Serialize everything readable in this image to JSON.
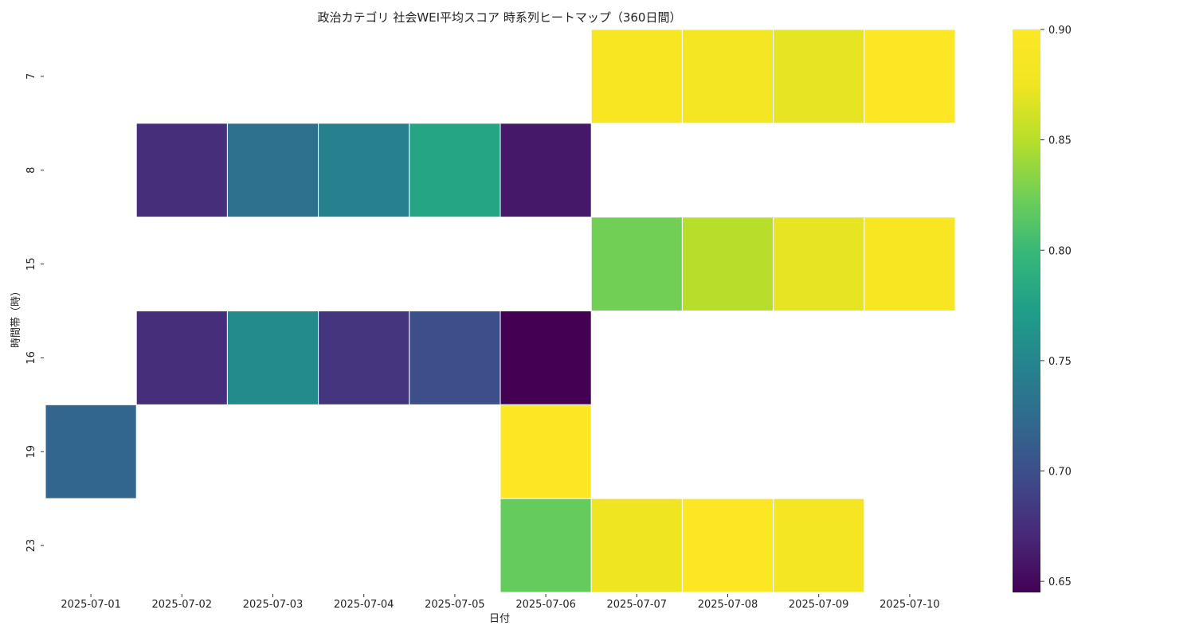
{
  "chart_data": {
    "type": "heatmap",
    "title": "政治カテゴリ 社会WEI平均スコア 時系列ヒートマップ（360日間）",
    "xlabel": "日付",
    "ylabel": "時間帯（時）",
    "x": [
      "2025-07-01",
      "2025-07-02",
      "2025-07-03",
      "2025-07-04",
      "2025-07-05",
      "2025-07-06",
      "2025-07-07",
      "2025-07-08",
      "2025-07-09",
      "2025-07-10"
    ],
    "y": [
      "7",
      "8",
      "15",
      "16",
      "19",
      "23"
    ],
    "values": [
      [
        null,
        null,
        null,
        null,
        null,
        null,
        0.89,
        0.885,
        0.87,
        0.9
      ],
      [
        null,
        0.675,
        0.73,
        0.745,
        0.78,
        0.66,
        null,
        null,
        null,
        null
      ],
      [
        null,
        null,
        null,
        null,
        null,
        null,
        0.825,
        0.85,
        0.87,
        0.89
      ],
      [
        null,
        0.675,
        0.755,
        0.68,
        0.7,
        0.645,
        null,
        null,
        null,
        null
      ],
      [
        0.72,
        null,
        null,
        null,
        null,
        0.9,
        null,
        null,
        null,
        null
      ],
      [
        null,
        null,
        null,
        null,
        null,
        0.82,
        0.875,
        0.9,
        0.885,
        null
      ]
    ],
    "colorbar": {
      "colormap": "viridis",
      "range": [
        0.645,
        0.9
      ],
      "ticks": [
        0.65,
        0.7,
        0.75,
        0.8,
        0.85,
        0.9
      ],
      "tick_labels": [
        "0.65",
        "0.70",
        "0.75",
        "0.80",
        "0.85",
        "0.90"
      ]
    }
  }
}
